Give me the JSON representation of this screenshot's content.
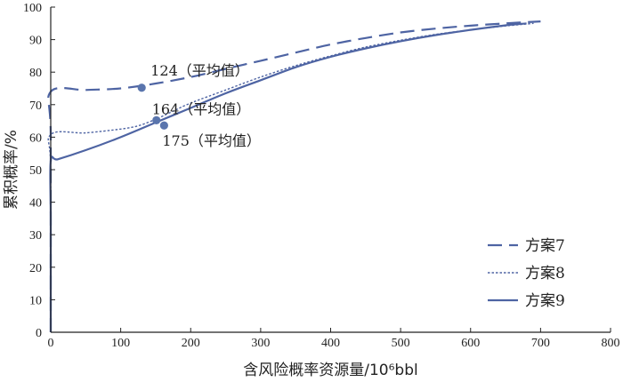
{
  "chart_data": {
    "type": "line",
    "xlabel": "含风险概率资源量/10⁶bbl",
    "ylabel": "累积概率/%",
    "xlim": [
      0,
      800
    ],
    "ylim": [
      0,
      100
    ],
    "x_ticks": [
      "0",
      "100",
      "200",
      "300",
      "400",
      "500",
      "600",
      "700",
      "800"
    ],
    "y_ticks": [
      "0",
      "10",
      "20",
      "30",
      "40",
      "50",
      "60",
      "70",
      "80",
      "90",
      "100"
    ],
    "grid": false,
    "legend_position": "bottom-right",
    "colors": {
      "line": "#4e64a3",
      "marker": "#5a75ad",
      "axis": "#222222"
    },
    "series": [
      {
        "name": "方案7",
        "style": "dashed",
        "x": [
          0,
          0,
          0,
          50,
          100,
          150,
          200,
          250,
          300,
          350,
          400,
          450,
          500,
          550,
          600,
          650,
          700
        ],
        "y": [
          0,
          60,
          74,
          74.5,
          75,
          76.5,
          78.5,
          81,
          83.5,
          86,
          88.5,
          90.5,
          92.2,
          93.4,
          94.3,
          95,
          95.6
        ]
      },
      {
        "name": "方案8",
        "style": "dotted",
        "x": [
          0,
          0,
          0,
          50,
          100,
          125,
          150,
          175,
          200,
          250,
          300,
          350,
          400,
          450,
          500,
          550,
          600,
          650,
          690
        ],
        "y": [
          0,
          50,
          60.8,
          61.3,
          62.5,
          63.5,
          65.5,
          68,
          70.5,
          74.5,
          78.5,
          82,
          85,
          87.7,
          89.8,
          91.6,
          93,
          94.2,
          95
        ]
      },
      {
        "name": "方案9",
        "style": "solid",
        "x": [
          0,
          0,
          0,
          10,
          50,
          100,
          150,
          200,
          250,
          300,
          350,
          400,
          450,
          500,
          550,
          600,
          650,
          680
        ],
        "y": [
          0,
          35,
          52.7,
          53.2,
          56,
          60,
          64.5,
          69,
          73.5,
          77.5,
          81.5,
          84.7,
          87.3,
          89.5,
          91.4,
          93,
          94.4,
          95
        ]
      }
    ],
    "annotations": [
      {
        "text": "124（平均值）",
        "x": 130,
        "y": 75.2,
        "series": "方案7"
      },
      {
        "text": "164（平均值）",
        "x": 151,
        "y": 65.2,
        "series": "方案8"
      },
      {
        "text": "175（平均值）",
        "x": 162,
        "y": 63.6,
        "series": "方案9"
      }
    ]
  }
}
